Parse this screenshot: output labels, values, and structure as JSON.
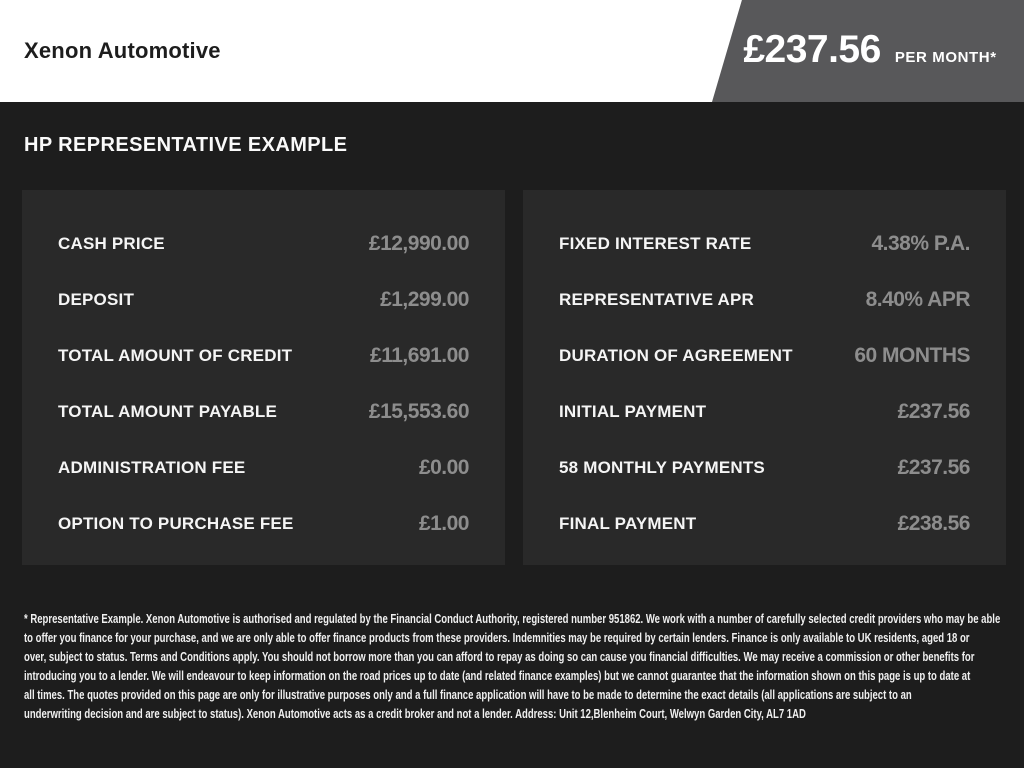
{
  "header": {
    "brand": "Xenon Automotive",
    "price_badge": {
      "amount": "£237.56",
      "suffix": "PER MONTH*"
    }
  },
  "main": {
    "title": "HP REPRESENTATIVE EXAMPLE",
    "panels": [
      {
        "rows": [
          {
            "label": "CASH PRICE",
            "value": "£12,990.00"
          },
          {
            "label": "DEPOSIT",
            "value": "£1,299.00"
          },
          {
            "label": "TOTAL AMOUNT OF CREDIT",
            "value": "£11,691.00"
          },
          {
            "label": "TOTAL AMOUNT PAYABLE",
            "value": "£15,553.60"
          },
          {
            "label": "ADMINISTRATION FEE",
            "value": "£0.00"
          },
          {
            "label": "OPTION TO PURCHASE FEE",
            "value": "£1.00"
          }
        ]
      },
      {
        "rows": [
          {
            "label": "FIXED INTEREST RATE",
            "value": "4.38% P.A."
          },
          {
            "label": "REPRESENTATIVE APR",
            "value": "8.40% APR"
          },
          {
            "label": "DURATION OF AGREEMENT",
            "value": "60 MONTHS"
          },
          {
            "label": "INITIAL PAYMENT",
            "value": "£237.56"
          },
          {
            "label": "58 MONTHLY PAYMENTS",
            "value": "£237.56"
          },
          {
            "label": "FINAL PAYMENT",
            "value": "£238.56"
          }
        ]
      }
    ]
  },
  "footer": {
    "disclaimer_lines": [
      "* Representative Example. Xenon Automotive is authorised and regulated by the Financial Conduct Authority, registered number 951862. We work with a number of carefully selected credit providers who may be able",
      "to offer you finance for your purchase, and we are only able to offer finance products from these providers. Indemnities may be required by certain lenders. Finance is only available to UK residents, aged 18 or",
      "over, subject to status. Terms and Conditions apply. You should not borrow more than you can afford to repay as doing so can cause you financial difficulties. We may receive a commission or other benefits for",
      "introducing you to a lender. We will endeavour to keep information on the road prices up to date (and related finance examples) but we cannot guarantee that the information shown on this page is up to date at",
      "all times. The quotes provided on this page are only for illustrative purposes only and a full finance application will have to be made to determine the exact details (all applications are subject to an",
      "underwriting decision and are subject to status). Xenon Automotive acts as a credit broker and not a lender. Address: Unit 12,Blenheim Court, Welwyn Garden City, AL7 1AD"
    ]
  },
  "colors": {
    "page_background": "#1d1d1d",
    "panel_background": "#292929",
    "badge_gray": "#58585a",
    "value_gray": "#8d8d8d",
    "header_background": "#ffffff",
    "text_white": "#f5f5f5"
  }
}
